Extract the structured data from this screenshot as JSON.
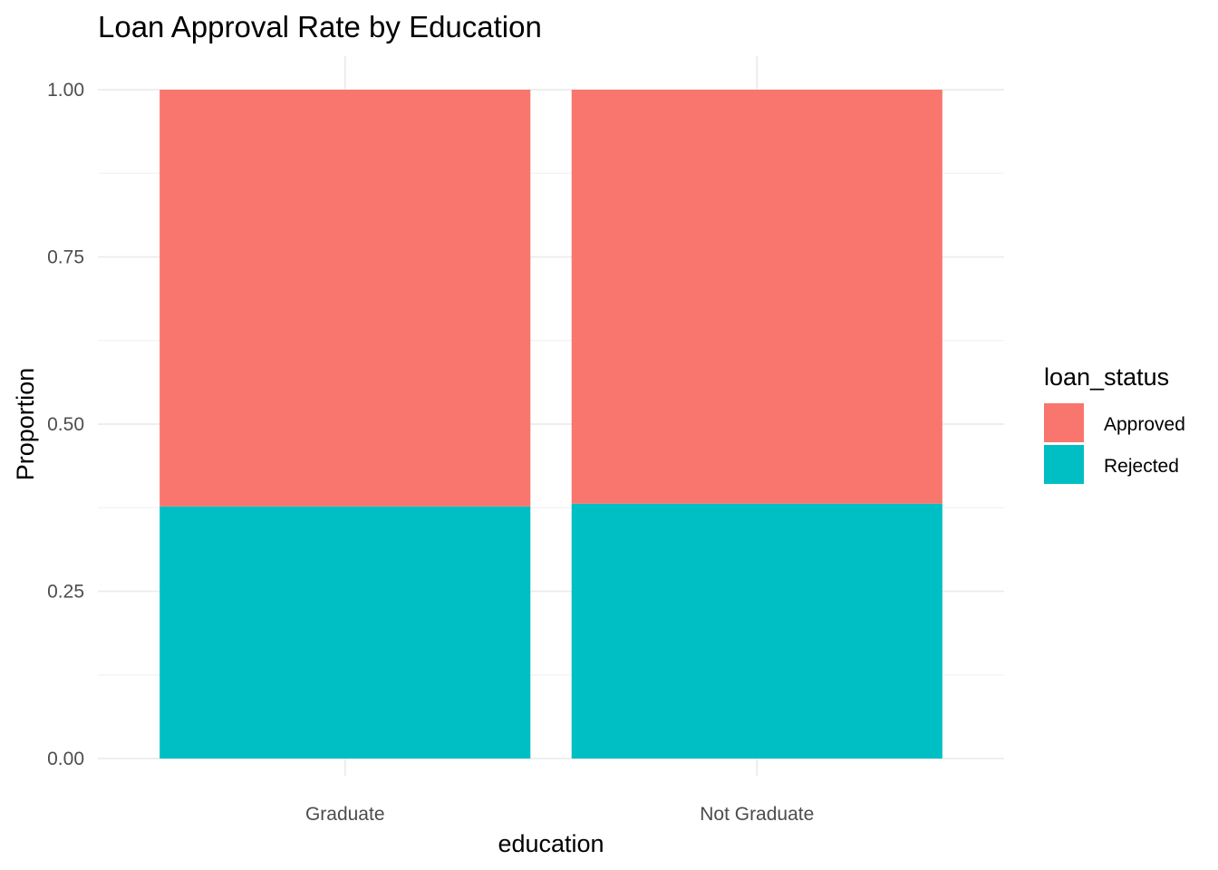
{
  "chart_data": {
    "type": "bar",
    "stacked": true,
    "title": "Loan Approval Rate by Education",
    "xlabel": "education",
    "ylabel": "Proportion",
    "categories": [
      "Graduate",
      "Not Graduate"
    ],
    "series": [
      {
        "name": "Rejected",
        "values": [
          0.377,
          0.381
        ],
        "color": "#00BFC4"
      },
      {
        "name": "Approved",
        "values": [
          0.623,
          0.619
        ],
        "color": "#F8766D"
      }
    ],
    "ylim": [
      0,
      1
    ],
    "yticks": [
      0,
      0.25,
      0.5,
      0.75,
      1
    ],
    "ytick_labels": [
      "0.00",
      "0.25",
      "0.50",
      "0.75",
      "1.00"
    ],
    "grid": true,
    "legend": {
      "title": "loan_status",
      "position": "right",
      "items": [
        {
          "label": "Approved",
          "color": "#F8766D"
        },
        {
          "label": "Rejected",
          "color": "#00BFC4"
        }
      ]
    }
  }
}
